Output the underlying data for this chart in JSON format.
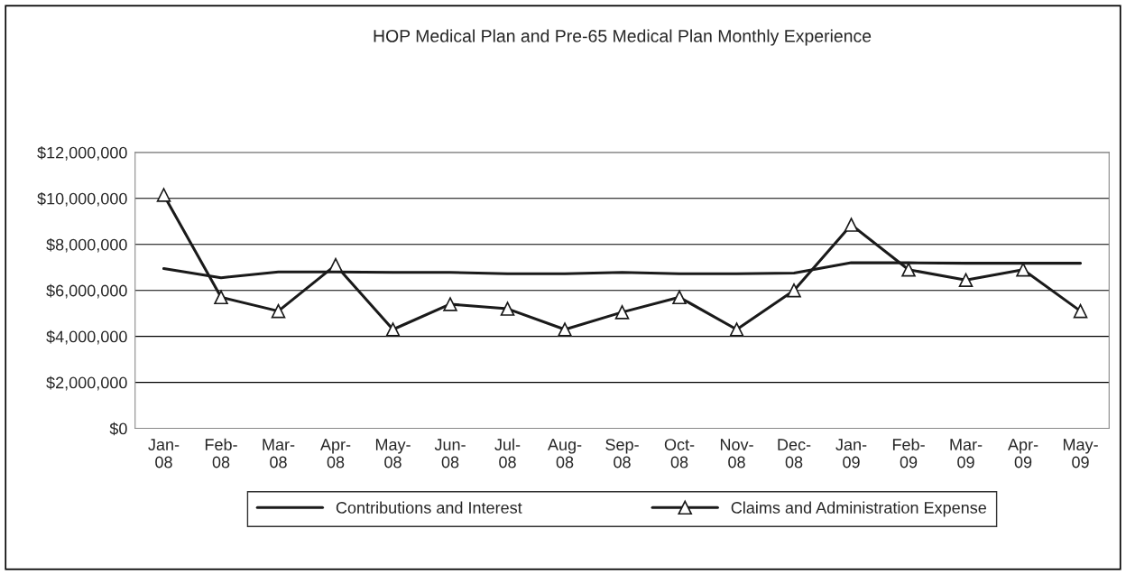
{
  "chart_data": {
    "type": "line",
    "title": "HOP Medical Plan and Pre-65 Medical Plan Monthly Experience",
    "categories": [
      "Jan-08",
      "Feb-08",
      "Mar-08",
      "Apr-08",
      "May-08",
      "Jun-08",
      "Jul-08",
      "Aug-08",
      "Sep-08",
      "Oct-08",
      "Nov-08",
      "Dec-08",
      "Jan-09",
      "Feb-09",
      "Mar-09",
      "Apr-09",
      "May-09"
    ],
    "series": [
      {
        "name": "Contributions and Interest",
        "color": "#1a1a1a",
        "marker": "none",
        "values": [
          6950000,
          6550000,
          6800000,
          6800000,
          6780000,
          6780000,
          6720000,
          6720000,
          6780000,
          6720000,
          6720000,
          6750000,
          7200000,
          7200000,
          7180000,
          7180000,
          7180000
        ]
      },
      {
        "name": "Claims and Administration Expense",
        "color": "#1a1a1a",
        "marker": "triangle",
        "values": [
          10150000,
          5700000,
          5100000,
          7100000,
          4300000,
          5400000,
          5200000,
          4300000,
          5050000,
          5700000,
          4300000,
          6000000,
          8850000,
          6900000,
          6450000,
          6900000,
          5100000
        ]
      }
    ],
    "ylim": [
      0,
      12000000
    ],
    "yticks": [
      {
        "value": 0,
        "label": "$0"
      },
      {
        "value": 2000000,
        "label": "$2,000,000"
      },
      {
        "value": 4000000,
        "label": "$4,000,000"
      },
      {
        "value": 6000000,
        "label": "$6,000,000"
      },
      {
        "value": 8000000,
        "label": "$8,000,000"
      },
      {
        "value": 10000000,
        "label": "$10,000,000"
      },
      {
        "value": 12000000,
        "label": "$12,000,000"
      }
    ],
    "grid": "y",
    "legend": "bottom",
    "line_style": "solid"
  }
}
